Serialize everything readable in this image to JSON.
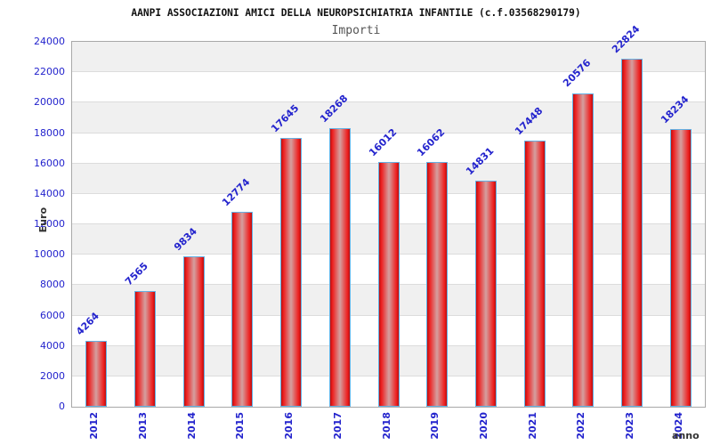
{
  "chart_data": {
    "type": "bar",
    "title": "AANPI ASSOCIAZIONI AMICI DELLA NEUROPSICHIATRIA INFANTILE (c.f.03568290179)",
    "subtitle": "Importi",
    "xlabel": "anno",
    "ylabel": "Euro",
    "categories": [
      "2012",
      "2013",
      "2014",
      "2015",
      "2016",
      "2017",
      "2018",
      "2019",
      "2020",
      "2021",
      "2022",
      "2023",
      "2024"
    ],
    "values": [
      4264,
      7565,
      9834,
      12774,
      17645,
      18268,
      16012,
      16062,
      14831,
      17448,
      20576,
      22824,
      18234
    ],
    "ylim": [
      0,
      24000
    ],
    "ytick_step": 2000,
    "grid": "horizontal-bands",
    "legend": "none",
    "bar_value_labels_rotation_deg": -45,
    "x_tick_rotation_deg": -90,
    "colors": {
      "label_blue": "#2323cd",
      "bar_red": "#ee2020",
      "bar_red_dark_edge": "#bb0f0f",
      "bar_center_light": "#d4a0a0",
      "bar_border_blue": "#64b1e4",
      "band_gray": "#f0f0f0",
      "gridline_gray": "#dcdcdc",
      "plot_border_gray": "#a8a8a8",
      "title_black": "#111111",
      "subtitle_gray": "#555555",
      "axis_title_gray": "#333333"
    }
  }
}
